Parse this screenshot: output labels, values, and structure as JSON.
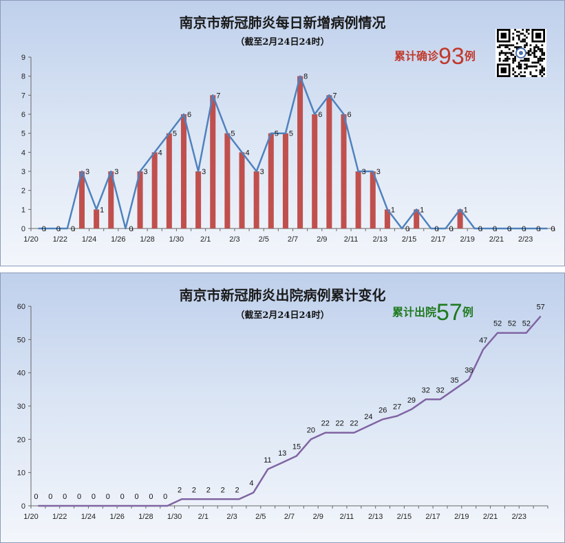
{
  "charts": [
    {
      "title": "南京市新冠肺炎每日新增病例情况",
      "subtitle": "（截至2月24日24时）",
      "callout": {
        "prefix": "累计确诊",
        "number": "93",
        "suffix": "例",
        "color": "#c0392b"
      }
    },
    {
      "title": "南京市新冠肺炎出院病例累计变化",
      "subtitle": "（截至2月24日24时）",
      "callout": {
        "prefix": "累计出院",
        "number": "57",
        "suffix": "例",
        "color": "#1f7a1f"
      }
    }
  ],
  "qr_code": {
    "icon": "qr-code-icon"
  },
  "colors": {
    "bar": "#c0504d",
    "line1": "#4f81bd",
    "line2": "#8064a2"
  },
  "chart_data": [
    {
      "type": "bar",
      "title": "南京市新冠肺炎每日新增病例情况",
      "subtitle": "（截至2月24日24时）",
      "categories": [
        "1/20",
        "1/21",
        "1/22",
        "1/23",
        "1/24",
        "1/25",
        "1/26",
        "1/27",
        "1/28",
        "1/29",
        "1/30",
        "1/31",
        "2/1",
        "2/2",
        "2/3",
        "2/4",
        "2/5",
        "2/6",
        "2/7",
        "2/8",
        "2/9",
        "2/10",
        "2/11",
        "2/12",
        "2/13",
        "2/14",
        "2/15",
        "2/16",
        "2/17",
        "2/18",
        "2/19",
        "2/20",
        "2/21",
        "2/22",
        "2/23",
        "2/24"
      ],
      "tick_labels": [
        "1/20",
        "1/22",
        "1/24",
        "1/26",
        "1/28",
        "1/30",
        "2/1",
        "2/3",
        "2/5",
        "2/7",
        "2/9",
        "2/11",
        "2/13",
        "2/15",
        "2/17",
        "2/19",
        "2/21",
        "2/23"
      ],
      "values": [
        0,
        0,
        0,
        3,
        1,
        3,
        0,
        3,
        4,
        5,
        6,
        3,
        7,
        5,
        4,
        3,
        5,
        5,
        8,
        6,
        7,
        6,
        3,
        3,
        1,
        0,
        1,
        0,
        0,
        1,
        0,
        0,
        0,
        0,
        0,
        0
      ],
      "ylim": [
        0,
        9
      ],
      "yticks": [
        0,
        1,
        2,
        3,
        4,
        5,
        6,
        7,
        8,
        9
      ],
      "series_display": [
        "bar",
        "line"
      ],
      "grid": false
    },
    {
      "type": "line",
      "title": "南京市新冠肺炎出院病例累计变化",
      "subtitle": "（截至2月24日24时）",
      "categories": [
        "1/20",
        "1/21",
        "1/22",
        "1/23",
        "1/24",
        "1/25",
        "1/26",
        "1/27",
        "1/28",
        "1/29",
        "1/30",
        "1/31",
        "2/1",
        "2/2",
        "2/3",
        "2/4",
        "2/5",
        "2/6",
        "2/7",
        "2/8",
        "2/9",
        "2/10",
        "2/11",
        "2/12",
        "2/13",
        "2/14",
        "2/15",
        "2/16",
        "2/17",
        "2/18",
        "2/19",
        "2/20",
        "2/21",
        "2/22",
        "2/23",
        "2/24"
      ],
      "tick_labels": [
        "1/20",
        "1/22",
        "1/24",
        "1/26",
        "1/28",
        "1/30",
        "2/1",
        "2/3",
        "2/5",
        "2/7",
        "2/9",
        "2/11",
        "2/13",
        "2/15",
        "2/17",
        "2/19",
        "2/21",
        "2/23"
      ],
      "values": [
        0,
        0,
        0,
        0,
        0,
        0,
        0,
        0,
        0,
        0,
        2,
        2,
        2,
        2,
        2,
        4,
        11,
        13,
        15,
        20,
        22,
        22,
        22,
        24,
        26,
        27,
        29,
        32,
        32,
        35,
        38,
        47,
        52,
        52,
        52,
        57
      ],
      "ylim": [
        0,
        60
      ],
      "yticks": [
        0,
        10,
        20,
        30,
        40,
        50,
        60
      ],
      "grid": false
    }
  ]
}
